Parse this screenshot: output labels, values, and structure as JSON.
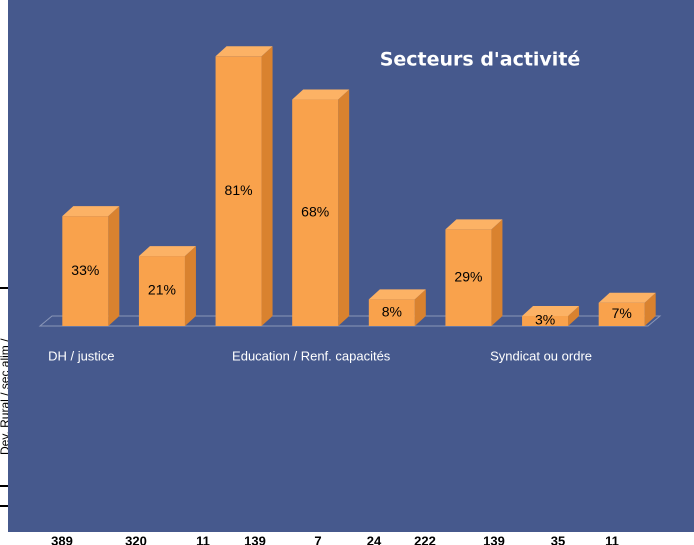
{
  "chart_data": {
    "type": "bar3d",
    "title": "Secteurs d'activité",
    "categories": [
      "DH / justice",
      null,
      null,
      "Education / Renf. capacités",
      null,
      null,
      "Syndicat ou ordre",
      null
    ],
    "values": [
      33,
      21,
      81,
      68,
      8,
      29,
      3,
      7
    ],
    "value_labels": [
      "33%",
      "21%",
      "81%",
      "68%",
      "8%",
      "29%",
      "3%",
      "7%"
    ],
    "color": "#f9a24c"
  },
  "sheet": {
    "row_label": "Dev. Rural / sec alim /",
    "bottom_values": [
      389,
      320,
      11,
      139,
      7,
      24,
      222,
      139,
      35,
      11
    ]
  }
}
